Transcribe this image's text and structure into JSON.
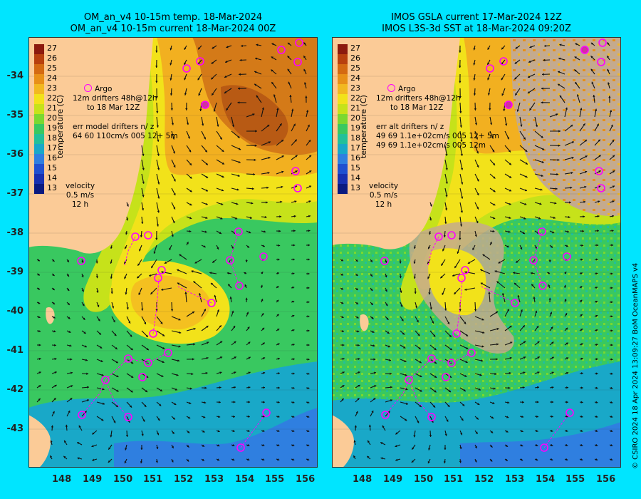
{
  "left": {
    "title_line1": "OM_an_v4  10-15m temp. 18-Mar-2024",
    "title_line2": "OM_an_v4  10-15m current 18-Mar-2024 00Z",
    "legend_argo": "Argo",
    "legend_drift1": "12m   drifters 48h@12h",
    "legend_drift2": "to 18 Mar 12Z",
    "err_line1": "err model drifters n/ z",
    "err_line2": "64 60 110cm/s 005 12+ 5m",
    "velocity_label": "velocity",
    "velocity_scale": "0.5 m/s",
    "velocity_time": "12 h",
    "colorbar_label": "temperature (C)"
  },
  "right": {
    "title_line1": "IMOS GSLA current 17-Mar-2024 12Z",
    "title_line2": "IMOS L3S-3d SST at 18-Mar-2024 09:20Z",
    "legend_argo": "Argo",
    "legend_drift1": "12m   drifters 48h@12h",
    "legend_drift2": "to 18 Mar 12Z",
    "err_line1": "err alt drifters n/ z",
    "err_line2": "49 69 1.1e+02cm/s 005 12+ 5m",
    "err_line3": "49 69 1.1e+02cm/s 005 12m",
    "velocity_label": "velocity",
    "velocity_scale": "0.5 m/s",
    "velocity_time": "12 h",
    "colorbar_label": "temperature (C)"
  },
  "colorbar_ticks": [
    "27",
    "26",
    "25",
    "24",
    "23",
    "22",
    "21",
    "20",
    "19",
    "18",
    "17",
    "16",
    "15",
    "14",
    "13"
  ],
  "lat_ticks": [
    "-34",
    "-35",
    "-36",
    "-37",
    "-38",
    "-39",
    "-40",
    "-41",
    "-42",
    "-43"
  ],
  "lon_ticks": [
    "148",
    "149",
    "150",
    "151",
    "152",
    "153",
    "154",
    "155",
    "156"
  ],
  "copyright": "© CSIRO 2024   18 Apr 2024 13:09:27 BoM OceanMAPS v4",
  "colors": {
    "background": "#00e5ff",
    "land": "#fbcb97",
    "argo": "#ff00ff",
    "cloud": "#c4aa8e"
  }
}
